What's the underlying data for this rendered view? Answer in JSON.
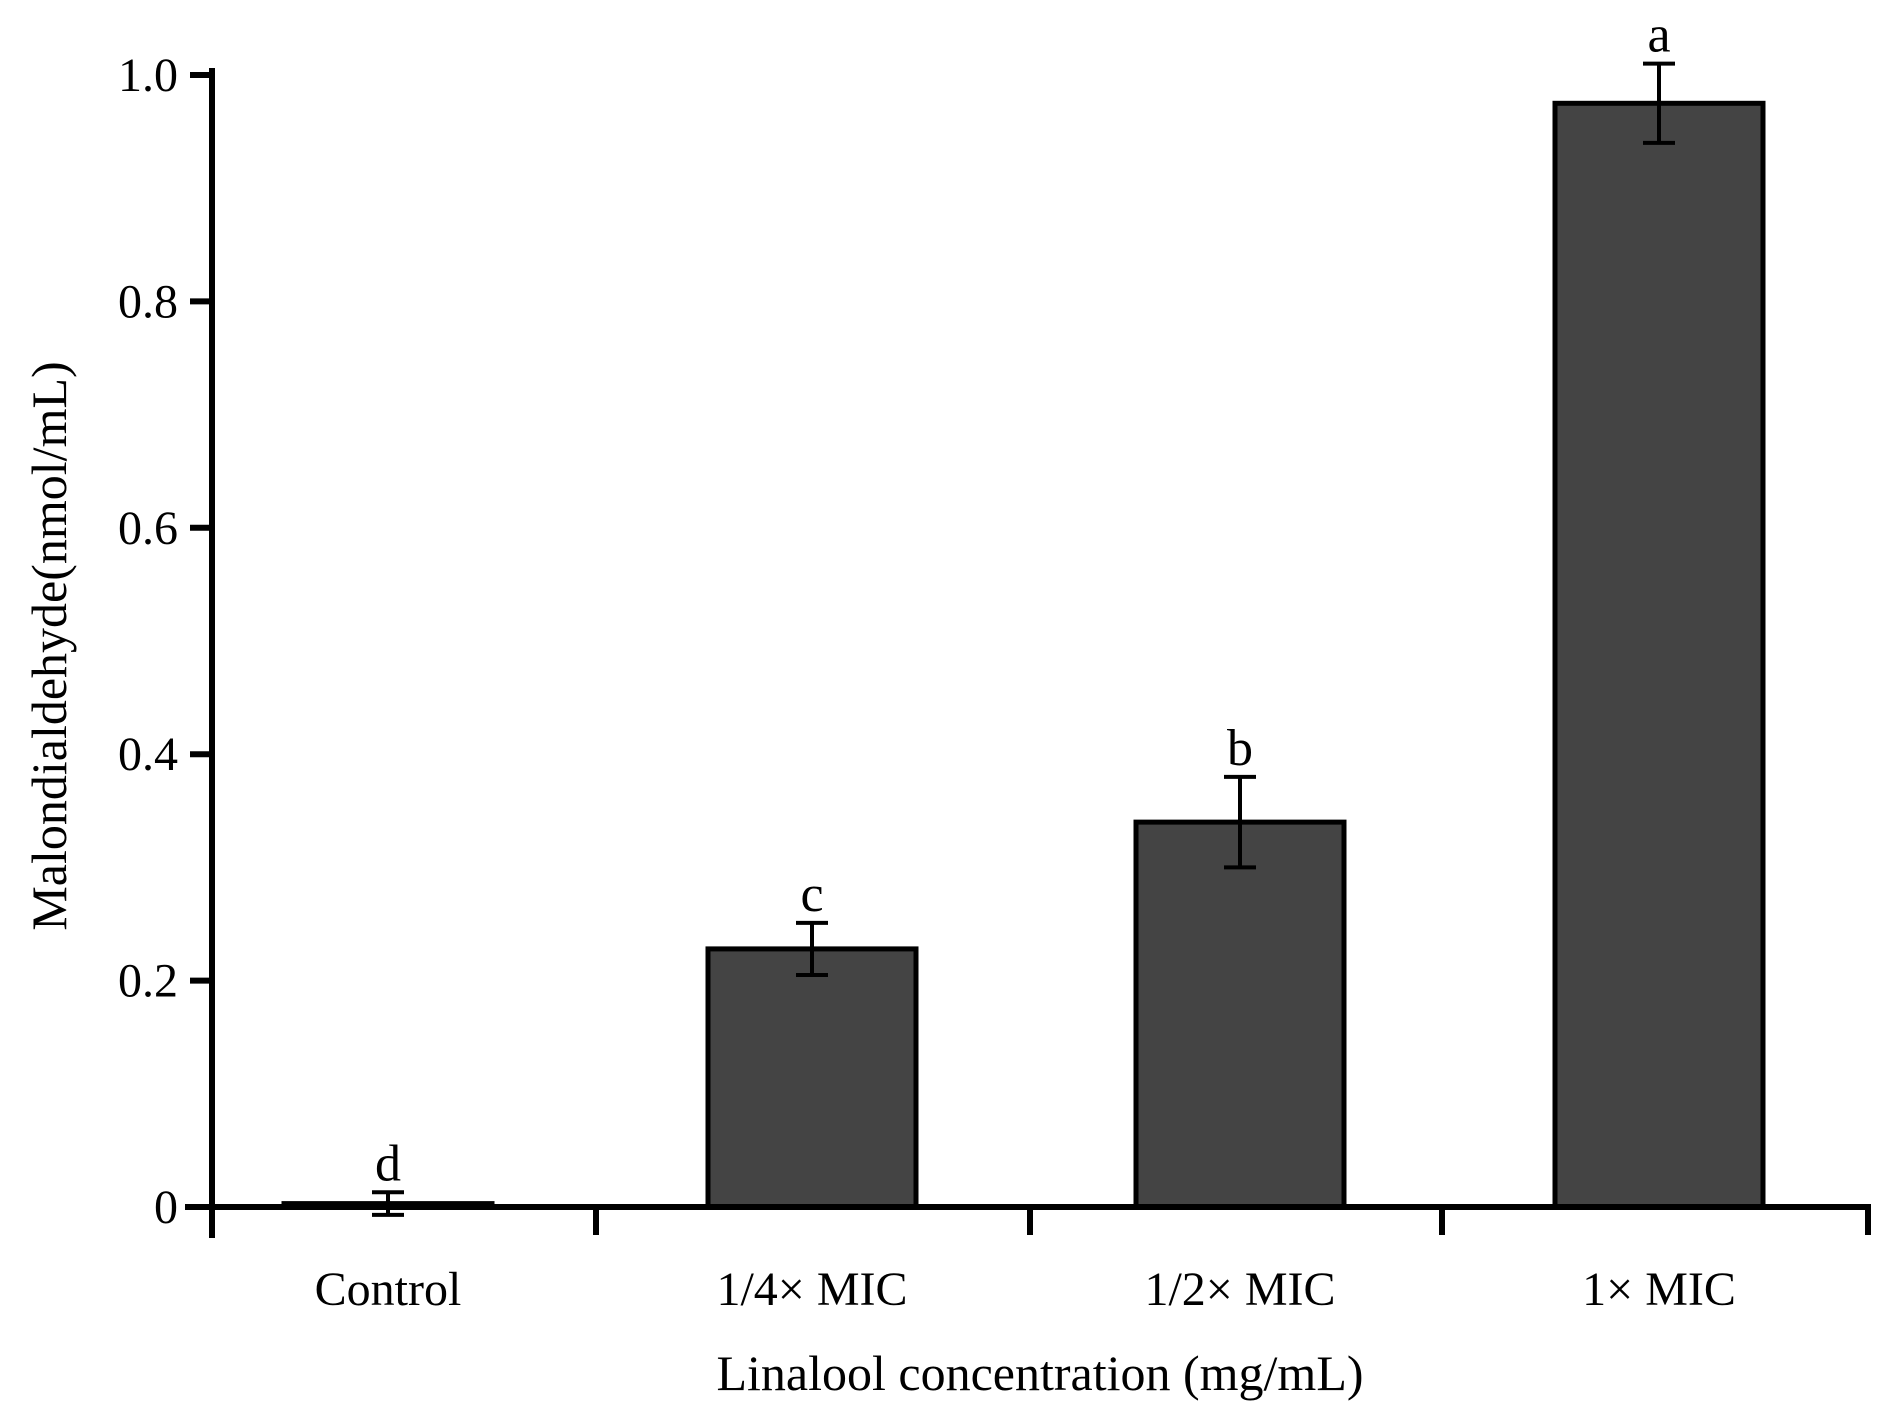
{
  "chart_data": {
    "type": "bar",
    "title": "",
    "xlabel": "Linalool concentration (mg/mL)",
    "ylabel": "Malondialdehyde(nmol/mL)",
    "ylim": [
      0,
      1.0
    ],
    "yticks": [
      0,
      0.2,
      0.4,
      0.6,
      0.8,
      1.0
    ],
    "ytick_labels": [
      "0",
      "0.2",
      "0.4",
      "0.6",
      "0.8",
      "1.0"
    ],
    "categories": [
      "Control",
      "1/4× MIC",
      "1/2× MIC",
      "1× MIC"
    ],
    "values": [
      0.003,
      0.228,
      0.34,
      0.975
    ],
    "errors": [
      0.01,
      0.023,
      0.04,
      0.035
    ],
    "significance": [
      "d",
      "c",
      "b",
      "a"
    ],
    "colors": {
      "bar": "#444444",
      "axis": "#000000"
    }
  }
}
